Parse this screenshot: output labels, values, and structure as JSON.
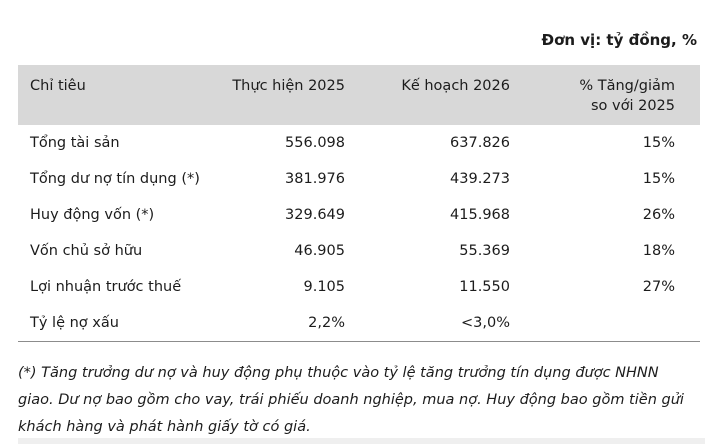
{
  "unit_note": "Đơn vị: tỷ đồng, %",
  "table": {
    "header": {
      "criteria": "Chỉ tiêu",
      "actual": "Thực hiện 2025",
      "plan": "Kế hoạch 2026",
      "change_line1": "% Tăng/giảm",
      "change_line2": "so với 2025"
    },
    "rows": [
      {
        "label": "Tổng tài sản",
        "actual": "556.098",
        "plan": "637.826",
        "change": "15%"
      },
      {
        "label": "Tổng dư nợ tín dụng (*)",
        "actual": "381.976",
        "plan": "439.273",
        "change": "15%"
      },
      {
        "label": "Huy động vốn (*)",
        "actual": "329.649",
        "plan": "415.968",
        "change": "26%"
      },
      {
        "label": "Vốn chủ sở hữu",
        "actual": "46.905",
        "plan": "55.369",
        "change": "18%"
      },
      {
        "label": "Lợi nhuận trước thuế",
        "actual": "9.105",
        "plan": "11.550",
        "change": "27%"
      },
      {
        "label": "Tỷ lệ nợ xấu",
        "actual": "2,2%",
        "plan": "<3,0%",
        "change": ""
      }
    ]
  },
  "footnote": "(*) Tăng trưởng dư nợ và huy động phụ thuộc vào tỷ lệ tăng trưởng tín dụng được NHNN giao. Dư nợ bao gồm cho vay, trái phiếu doanh nghiệp, mua nợ. Huy động bao gồm tiền gửi khách hàng và phát hành giấy tờ có giá.",
  "colors": {
    "header_bg": "#d8d8d8",
    "text": "#1c1c1c",
    "rule": "#8c8c8c",
    "bottom_bar": "#efefef"
  }
}
